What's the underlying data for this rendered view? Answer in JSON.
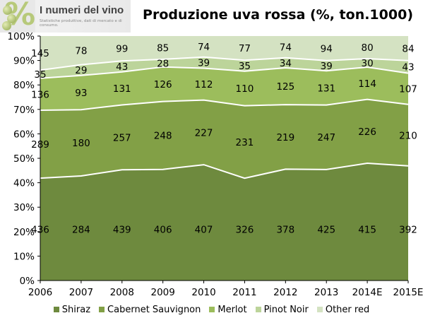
{
  "header": {
    "logo_title": "I numeri del vino",
    "logo_subtitle": "Statistiche produttive, dati di mercato e di consumo.",
    "logo_symbol": "%"
  },
  "chart_data": {
    "type": "area",
    "stacked": "percent",
    "title": "Produzione uva rossa (%, ton.1000)",
    "categories": [
      "2006",
      "2007",
      "2008",
      "2009",
      "2010",
      "2011",
      "2012",
      "2013",
      "2014E",
      "2015E"
    ],
    "y_ticks": [
      "0%",
      "10%",
      "20%",
      "30%",
      "40%",
      "50%",
      "60%",
      "70%",
      "80%",
      "90%",
      "100%"
    ],
    "ylim": [
      0,
      100
    ],
    "grid": false,
    "legend_position": "bottom",
    "series": [
      {
        "name": "Shiraz",
        "color": "#6e8a3e",
        "values": [
          436,
          284,
          439,
          406,
          407,
          326,
          378,
          425,
          415,
          392
        ]
      },
      {
        "name": "Cabernet Sauvignon",
        "color": "#82a046",
        "values": [
          289,
          180,
          257,
          248,
          227,
          231,
          219,
          247,
          226,
          210
        ]
      },
      {
        "name": "Merlot",
        "color": "#9cbd5c",
        "values": [
          136,
          93,
          131,
          126,
          112,
          110,
          125,
          131,
          114,
          107
        ]
      },
      {
        "name": "Pinot Noir",
        "color": "#bcd49a",
        "values": [
          35,
          29,
          43,
          28,
          39,
          35,
          34,
          39,
          30,
          43
        ]
      },
      {
        "name": "Other red",
        "color": "#d4e2c2",
        "values": [
          145,
          78,
          99,
          85,
          74,
          77,
          74,
          94,
          80,
          84
        ]
      }
    ]
  }
}
